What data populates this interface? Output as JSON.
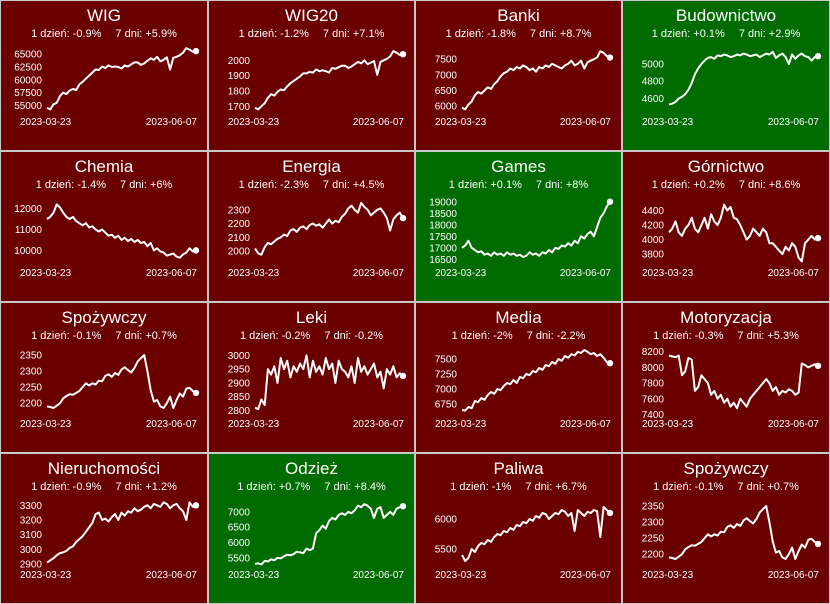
{
  "chart_data": [
    {
      "type": "line",
      "title": "WIG",
      "stat_1d": "1 dzień: -0.9%",
      "stat_7d": "7 dni: +5.9%",
      "trend": "down",
      "date_start": "2023-03-23",
      "date_end": "2023-06-07",
      "yticks": [
        "65000",
        "62500",
        "60000",
        "57500",
        "55000"
      ],
      "ytick_values": [
        65000,
        62500,
        60000,
        57500,
        55000
      ],
      "ylim": [
        53300,
        66800
      ],
      "values": [
        54500,
        54200,
        55200,
        55500,
        56800,
        57500,
        57200,
        57900,
        58200,
        58000,
        59100,
        59600,
        60200,
        60800,
        61400,
        62000,
        61900,
        62600,
        62300,
        62800,
        62500,
        62600,
        62500,
        62200,
        62800,
        62600,
        63000,
        63400,
        63400,
        62900,
        63200,
        63700,
        64200,
        63900,
        64500,
        63600,
        63900,
        64400,
        62000,
        64300,
        64500,
        64800,
        65300,
        66200,
        65900,
        65500,
        65600
      ]
    },
    {
      "type": "line",
      "title": "WIG20",
      "stat_1d": "1 dzień: -1.2%",
      "stat_7d": "7 dni: +7.1%",
      "trend": "down",
      "date_start": "2023-03-23",
      "date_end": "2023-06-07",
      "yticks": [
        "2000",
        "1900",
        "1800",
        "1700"
      ],
      "ytick_values": [
        2000,
        1900,
        1800,
        1700
      ],
      "ylim": [
        1650,
        2100
      ],
      "values": [
        1690,
        1680,
        1700,
        1720,
        1755,
        1780,
        1770,
        1795,
        1810,
        1805,
        1830,
        1850,
        1865,
        1880,
        1895,
        1915,
        1915,
        1925,
        1920,
        1940,
        1930,
        1935,
        1930,
        1920,
        1950,
        1945,
        1955,
        1965,
        1965,
        1950,
        1960,
        1975,
        1990,
        1980,
        2000,
        1975,
        1985,
        1995,
        1905,
        1990,
        2000,
        2010,
        2025,
        2060,
        2050,
        2035,
        2040
      ]
    },
    {
      "type": "line",
      "title": "Banki",
      "stat_1d": "1 dzień: -1.8%",
      "stat_7d": "7 dni: +8.7%",
      "trend": "down",
      "date_start": "2023-03-23",
      "date_end": "2023-06-07",
      "yticks": [
        "7500",
        "7000",
        "6500",
        "6000"
      ],
      "ytick_values": [
        7500,
        7000,
        6500,
        6000
      ],
      "ylim": [
        5750,
        7950
      ],
      "values": [
        5950,
        5900,
        6050,
        6150,
        6350,
        6450,
        6400,
        6500,
        6600,
        6550,
        6700,
        6800,
        6950,
        7050,
        7100,
        7200,
        7150,
        7250,
        7200,
        7300,
        7250,
        7150,
        7200,
        7100,
        7250,
        7200,
        7300,
        7250,
        7350,
        7300,
        7250,
        7200,
        7300,
        7350,
        7450,
        7300,
        7350,
        7450,
        7200,
        7400,
        7450,
        7500,
        7550,
        7750,
        7700,
        7600,
        7550
      ]
    },
    {
      "type": "line",
      "title": "Budownictwo",
      "stat_1d": "1 dzień: +0.1%",
      "stat_7d": "7 dni: +2.9%",
      "trend": "up",
      "date_start": "2023-03-23",
      "date_end": "2023-06-07",
      "yticks": [
        "5000",
        "4800",
        "4600"
      ],
      "ytick_values": [
        5000,
        4800,
        4600
      ],
      "ylim": [
        4420,
        5220
      ],
      "values": [
        4530,
        4540,
        4560,
        4600,
        4620,
        4650,
        4700,
        4780,
        4880,
        4950,
        5000,
        5040,
        5070,
        5080,
        5060,
        5100,
        5090,
        5110,
        5100,
        5080,
        5090,
        5110,
        5100,
        5120,
        5110,
        5090,
        5100,
        5110,
        5080,
        5100,
        5120,
        5110,
        5140,
        5070,
        5100,
        5120,
        5080,
        5000,
        5110,
        5060,
        5100,
        5120,
        5090,
        5080,
        5040,
        5080,
        5090
      ]
    },
    {
      "type": "line",
      "title": "Chemia",
      "stat_1d": "1 dzień: -1.4%",
      "stat_7d": "7 dni: +6%",
      "trend": "down",
      "date_start": "2023-03-23",
      "date_end": "2023-06-07",
      "yticks": [
        "12000",
        "11000",
        "10000"
      ],
      "ytick_values": [
        12000,
        11000,
        10000
      ],
      "ylim": [
        9300,
        12600
      ],
      "values": [
        11500,
        11600,
        11800,
        12200,
        12050,
        11800,
        11600,
        11500,
        11600,
        11400,
        11300,
        11200,
        11300,
        11100,
        11150,
        11000,
        10900,
        11000,
        10850,
        10700,
        10750,
        10600,
        10700,
        10500,
        10600,
        10450,
        10550,
        10400,
        10500,
        10350,
        10400,
        10200,
        10350,
        10000,
        10100,
        9950,
        9900,
        9750,
        9800,
        9850,
        9700,
        9650,
        9800,
        9900,
        10100,
        9950,
        10000
      ]
    },
    {
      "type": "line",
      "title": "Energia",
      "stat_1d": "1 dzień: -2.3%",
      "stat_7d": "7 dni: +4.5%",
      "trend": "down",
      "date_start": "2023-03-23",
      "date_end": "2023-06-07",
      "yticks": [
        "2300",
        "2200",
        "2100",
        "2000"
      ],
      "ytick_values": [
        2300,
        2200,
        2100,
        2000
      ],
      "ylim": [
        1900,
        2400
      ],
      "values": [
        2020,
        1985,
        1975,
        2030,
        2060,
        2050,
        2070,
        2090,
        2100,
        2120,
        2110,
        2150,
        2160,
        2140,
        2170,
        2180,
        2160,
        2190,
        2200,
        2185,
        2195,
        2170,
        2200,
        2230,
        2200,
        2220,
        2210,
        2250,
        2270,
        2310,
        2330,
        2300,
        2280,
        2350,
        2320,
        2300,
        2260,
        2280,
        2300,
        2310,
        2280,
        2240,
        2150,
        2230,
        2260,
        2280,
        2240
      ]
    },
    {
      "type": "line",
      "title": "Games",
      "stat_1d": "1 dzień: +0.1%",
      "stat_7d": "7 dni: +8%",
      "trend": "up",
      "date_start": "2023-03-23",
      "date_end": "2023-06-07",
      "yticks": [
        "19000",
        "18500",
        "18000",
        "17500",
        "17000",
        "16500"
      ],
      "ytick_values": [
        19000,
        18500,
        18000,
        17500,
        17000,
        16500
      ],
      "ylim": [
        16250,
        19250
      ],
      "values": [
        17000,
        17100,
        17300,
        17000,
        16900,
        16800,
        16850,
        16700,
        16750,
        16650,
        16800,
        16700,
        16750,
        16650,
        16800,
        16700,
        16750,
        16650,
        16700,
        16600,
        16650,
        16800,
        16700,
        16750,
        16650,
        16800,
        16750,
        16900,
        16800,
        17000,
        16950,
        17100,
        17050,
        17200,
        17100,
        17300,
        17200,
        17500,
        17400,
        17600,
        17700,
        17500,
        17900,
        18300,
        18500,
        18800,
        19000
      ]
    },
    {
      "type": "line",
      "title": "Górnictwo",
      "stat_1d": "1 dzień: +0.2%",
      "stat_7d": "7 dni: +8.6%",
      "trend": "down",
      "date_start": "2023-03-23",
      "date_end": "2023-06-07",
      "yticks": [
        "4400",
        "4200",
        "4000",
        "3800"
      ],
      "ytick_values": [
        4400,
        4200,
        4000,
        3800
      ],
      "ylim": [
        3650,
        4600
      ],
      "values": [
        4100,
        4150,
        4250,
        4100,
        4050,
        4150,
        4200,
        4300,
        4150,
        4100,
        4200,
        4300,
        4150,
        4350,
        4250,
        4200,
        4300,
        4480,
        4400,
        4450,
        4300,
        4280,
        4200,
        4100,
        4000,
        4050,
        4150,
        4100,
        4050,
        4150,
        4100,
        3950,
        3950,
        3900,
        3850,
        3800,
        3900,
        3850,
        3950,
        3900,
        3750,
        3700,
        3950,
        4000,
        4050,
        4000,
        4020
      ]
    },
    {
      "type": "line",
      "title": "Spożywczy",
      "stat_1d": "1 dzień: -0.1%",
      "stat_7d": "7 dni: +0.7%",
      "trend": "down",
      "date_start": "2023-03-23",
      "date_end": "2023-06-07",
      "yticks": [
        "2350",
        "2300",
        "2250",
        "2200"
      ],
      "ytick_values": [
        2350,
        2300,
        2250,
        2200
      ],
      "ylim": [
        2160,
        2375
      ],
      "values": [
        2190,
        2188,
        2185,
        2192,
        2200,
        2215,
        2222,
        2228,
        2226,
        2232,
        2238,
        2250,
        2262,
        2255,
        2262,
        2258,
        2270,
        2268,
        2285,
        2290,
        2282,
        2294,
        2288,
        2305,
        2312,
        2303,
        2296,
        2310,
        2330,
        2340,
        2350,
        2300,
        2240,
        2205,
        2210,
        2190,
        2185,
        2200,
        2220,
        2185,
        2210,
        2230,
        2220,
        2245,
        2248,
        2238,
        2232
      ]
    },
    {
      "type": "line",
      "title": "Leki",
      "stat_1d": "1 dzień: -0.2%",
      "stat_7d": "7 dni: -0.2%",
      "trend": "down",
      "date_start": "2023-03-23",
      "date_end": "2023-06-07",
      "yticks": [
        "3000",
        "2950",
        "2900",
        "2850",
        "2800"
      ],
      "ytick_values": [
        3000,
        2950,
        2900,
        2850,
        2800
      ],
      "ylim": [
        2780,
        3030
      ],
      "values": [
        2810,
        2805,
        2840,
        2820,
        2950,
        2930,
        2960,
        2900,
        2990,
        2950,
        2980,
        2920,
        2960,
        2940,
        2970,
        2950,
        3000,
        2920,
        2980,
        2940,
        2960,
        2930,
        2990,
        2950,
        2970,
        2900,
        2980,
        2950,
        2940,
        2920,
        2960,
        2900,
        2990,
        2940,
        2960,
        2930,
        2950,
        2970,
        2920,
        2940,
        2880,
        2950,
        2930,
        2960,
        2920,
        2935,
        2925
      ]
    },
    {
      "type": "line",
      "title": "Media",
      "stat_1d": "1 dzień: -2%",
      "stat_7d": "7 dni: -2.2%",
      "trend": "down",
      "date_start": "2023-03-23",
      "date_end": "2023-06-07",
      "yticks": [
        "7500",
        "7250",
        "7000",
        "6750"
      ],
      "ytick_values": [
        7500,
        7250,
        7000,
        6750
      ],
      "ylim": [
        6550,
        7700
      ],
      "values": [
        6650,
        6640,
        6700,
        6680,
        6800,
        6780,
        6850,
        6820,
        6900,
        6950,
        6920,
        7000,
        6980,
        7050,
        7100,
        7080,
        7150,
        7100,
        7200,
        7180,
        7250,
        7230,
        7300,
        7280,
        7350,
        7320,
        7400,
        7380,
        7450,
        7420,
        7500,
        7470,
        7550,
        7520,
        7580,
        7560,
        7620,
        7600,
        7650,
        7620,
        7580,
        7600,
        7550,
        7580,
        7520,
        7450,
        7430
      ]
    },
    {
      "type": "line",
      "title": "Motoryzacja",
      "stat_1d": "1 dzień: -0.3%",
      "stat_7d": "7 dni: +5.3%",
      "trend": "down",
      "date_start": "2023-03-23",
      "date_end": "2023-06-07",
      "yticks": [
        "8200",
        "8000",
        "7800",
        "7600",
        "7400"
      ],
      "ytick_values": [
        8200,
        8000,
        7800,
        7600,
        7400
      ],
      "ylim": [
        7380,
        8260
      ],
      "values": [
        8150,
        8140,
        8130,
        8150,
        7900,
        7950,
        8120,
        8100,
        7700,
        7750,
        7900,
        7850,
        7800,
        7650,
        7700,
        7600,
        7650,
        7550,
        7600,
        7500,
        7550,
        7480,
        7600,
        7550,
        7500,
        7600,
        7650,
        7700,
        7750,
        7800,
        7850,
        7800,
        7700,
        7750,
        7650,
        7700,
        7680,
        7720,
        7700,
        7650,
        7680,
        8050,
        8030,
        8000,
        8020,
        8040,
        8020
      ]
    },
    {
      "type": "line",
      "title": "Nieruchomości",
      "stat_1d": "1 dzień: -0.9%",
      "stat_7d": "7 dni: +1.2%",
      "trend": "down",
      "date_start": "2023-03-23",
      "date_end": "2023-06-07",
      "yticks": [
        "3300",
        "3200",
        "3100",
        "3000",
        "2900"
      ],
      "ytick_values": [
        3300,
        3200,
        3100,
        3000,
        2900
      ],
      "ylim": [
        2880,
        3350
      ],
      "values": [
        2910,
        2925,
        2940,
        2960,
        2975,
        2980,
        2990,
        3010,
        3020,
        3050,
        3070,
        3090,
        3120,
        3150,
        3180,
        3240,
        3250,
        3200,
        3210,
        3190,
        3220,
        3240,
        3200,
        3250,
        3230,
        3260,
        3250,
        3280,
        3260,
        3270,
        3290,
        3300,
        3280,
        3310,
        3300,
        3290,
        3320,
        3310,
        3280,
        3300,
        3310,
        3280,
        3260,
        3200,
        3320,
        3290,
        3300
      ]
    },
    {
      "type": "line",
      "title": "Odzież",
      "stat_1d": "1 dzień: +0.7%",
      "stat_7d": "7 dni: +8.4%",
      "trend": "up",
      "date_start": "2023-03-23",
      "date_end": "2023-06-07",
      "yticks": [
        "7000",
        "6500",
        "6000",
        "5500"
      ],
      "ytick_values": [
        7000,
        6500,
        6000,
        5500
      ],
      "ylim": [
        5200,
        7450
      ],
      "values": [
        5300,
        5320,
        5280,
        5400,
        5380,
        5450,
        5420,
        5500,
        5480,
        5550,
        5600,
        5580,
        5620,
        5700,
        5680,
        5650,
        5800,
        5750,
        5800,
        6300,
        6400,
        6550,
        6450,
        6700,
        6800,
        6750,
        6900,
        6950,
        6900,
        7000,
        6950,
        7050,
        7200,
        7150,
        7250,
        7200,
        7100,
        6800,
        7100,
        7150,
        6800,
        6900,
        7000,
        6900,
        7100,
        7150,
        7180
      ]
    },
    {
      "type": "line",
      "title": "Paliwa",
      "stat_1d": "1 dzień: -1%",
      "stat_7d": "7 dni: +6.7%",
      "trend": "down",
      "date_start": "2023-03-23",
      "date_end": "2023-06-07",
      "yticks": [
        "6000",
        "5500"
      ],
      "ytick_values": [
        6000,
        5500
      ],
      "ylim": [
        5200,
        6350
      ],
      "values": [
        5400,
        5300,
        5350,
        5500,
        5450,
        5550,
        5600,
        5580,
        5650,
        5620,
        5700,
        5750,
        5730,
        5800,
        5780,
        5850,
        5820,
        5900,
        5880,
        5950,
        5930,
        6000,
        5970,
        6050,
        6020,
        6100,
        6080,
        6000,
        6050,
        6100,
        6080,
        6150,
        6120,
        6050,
        6100,
        5800,
        6150,
        6100,
        6050,
        6120,
        6100,
        6150,
        6130,
        5700,
        6200,
        6150,
        6100
      ]
    },
    {
      "type": "line",
      "title": "Spożywczy",
      "stat_1d": "1 dzień: -0.1%",
      "stat_7d": "7 dni: +0.7%",
      "trend": "down",
      "date_start": "2023-03-23",
      "date_end": "2023-06-07",
      "yticks": [
        "2350",
        "2300",
        "2250",
        "2200"
      ],
      "ytick_values": [
        2350,
        2300,
        2250,
        2200
      ],
      "ylim": [
        2160,
        2375
      ],
      "values": [
        2190,
        2188,
        2185,
        2192,
        2200,
        2215,
        2222,
        2228,
        2226,
        2232,
        2238,
        2250,
        2262,
        2255,
        2262,
        2258,
        2270,
        2268,
        2285,
        2290,
        2282,
        2294,
        2288,
        2305,
        2312,
        2303,
        2296,
        2310,
        2330,
        2340,
        2350,
        2300,
        2240,
        2205,
        2210,
        2190,
        2185,
        2200,
        2220,
        2185,
        2210,
        2230,
        2220,
        2245,
        2248,
        2238,
        2232
      ]
    }
  ]
}
